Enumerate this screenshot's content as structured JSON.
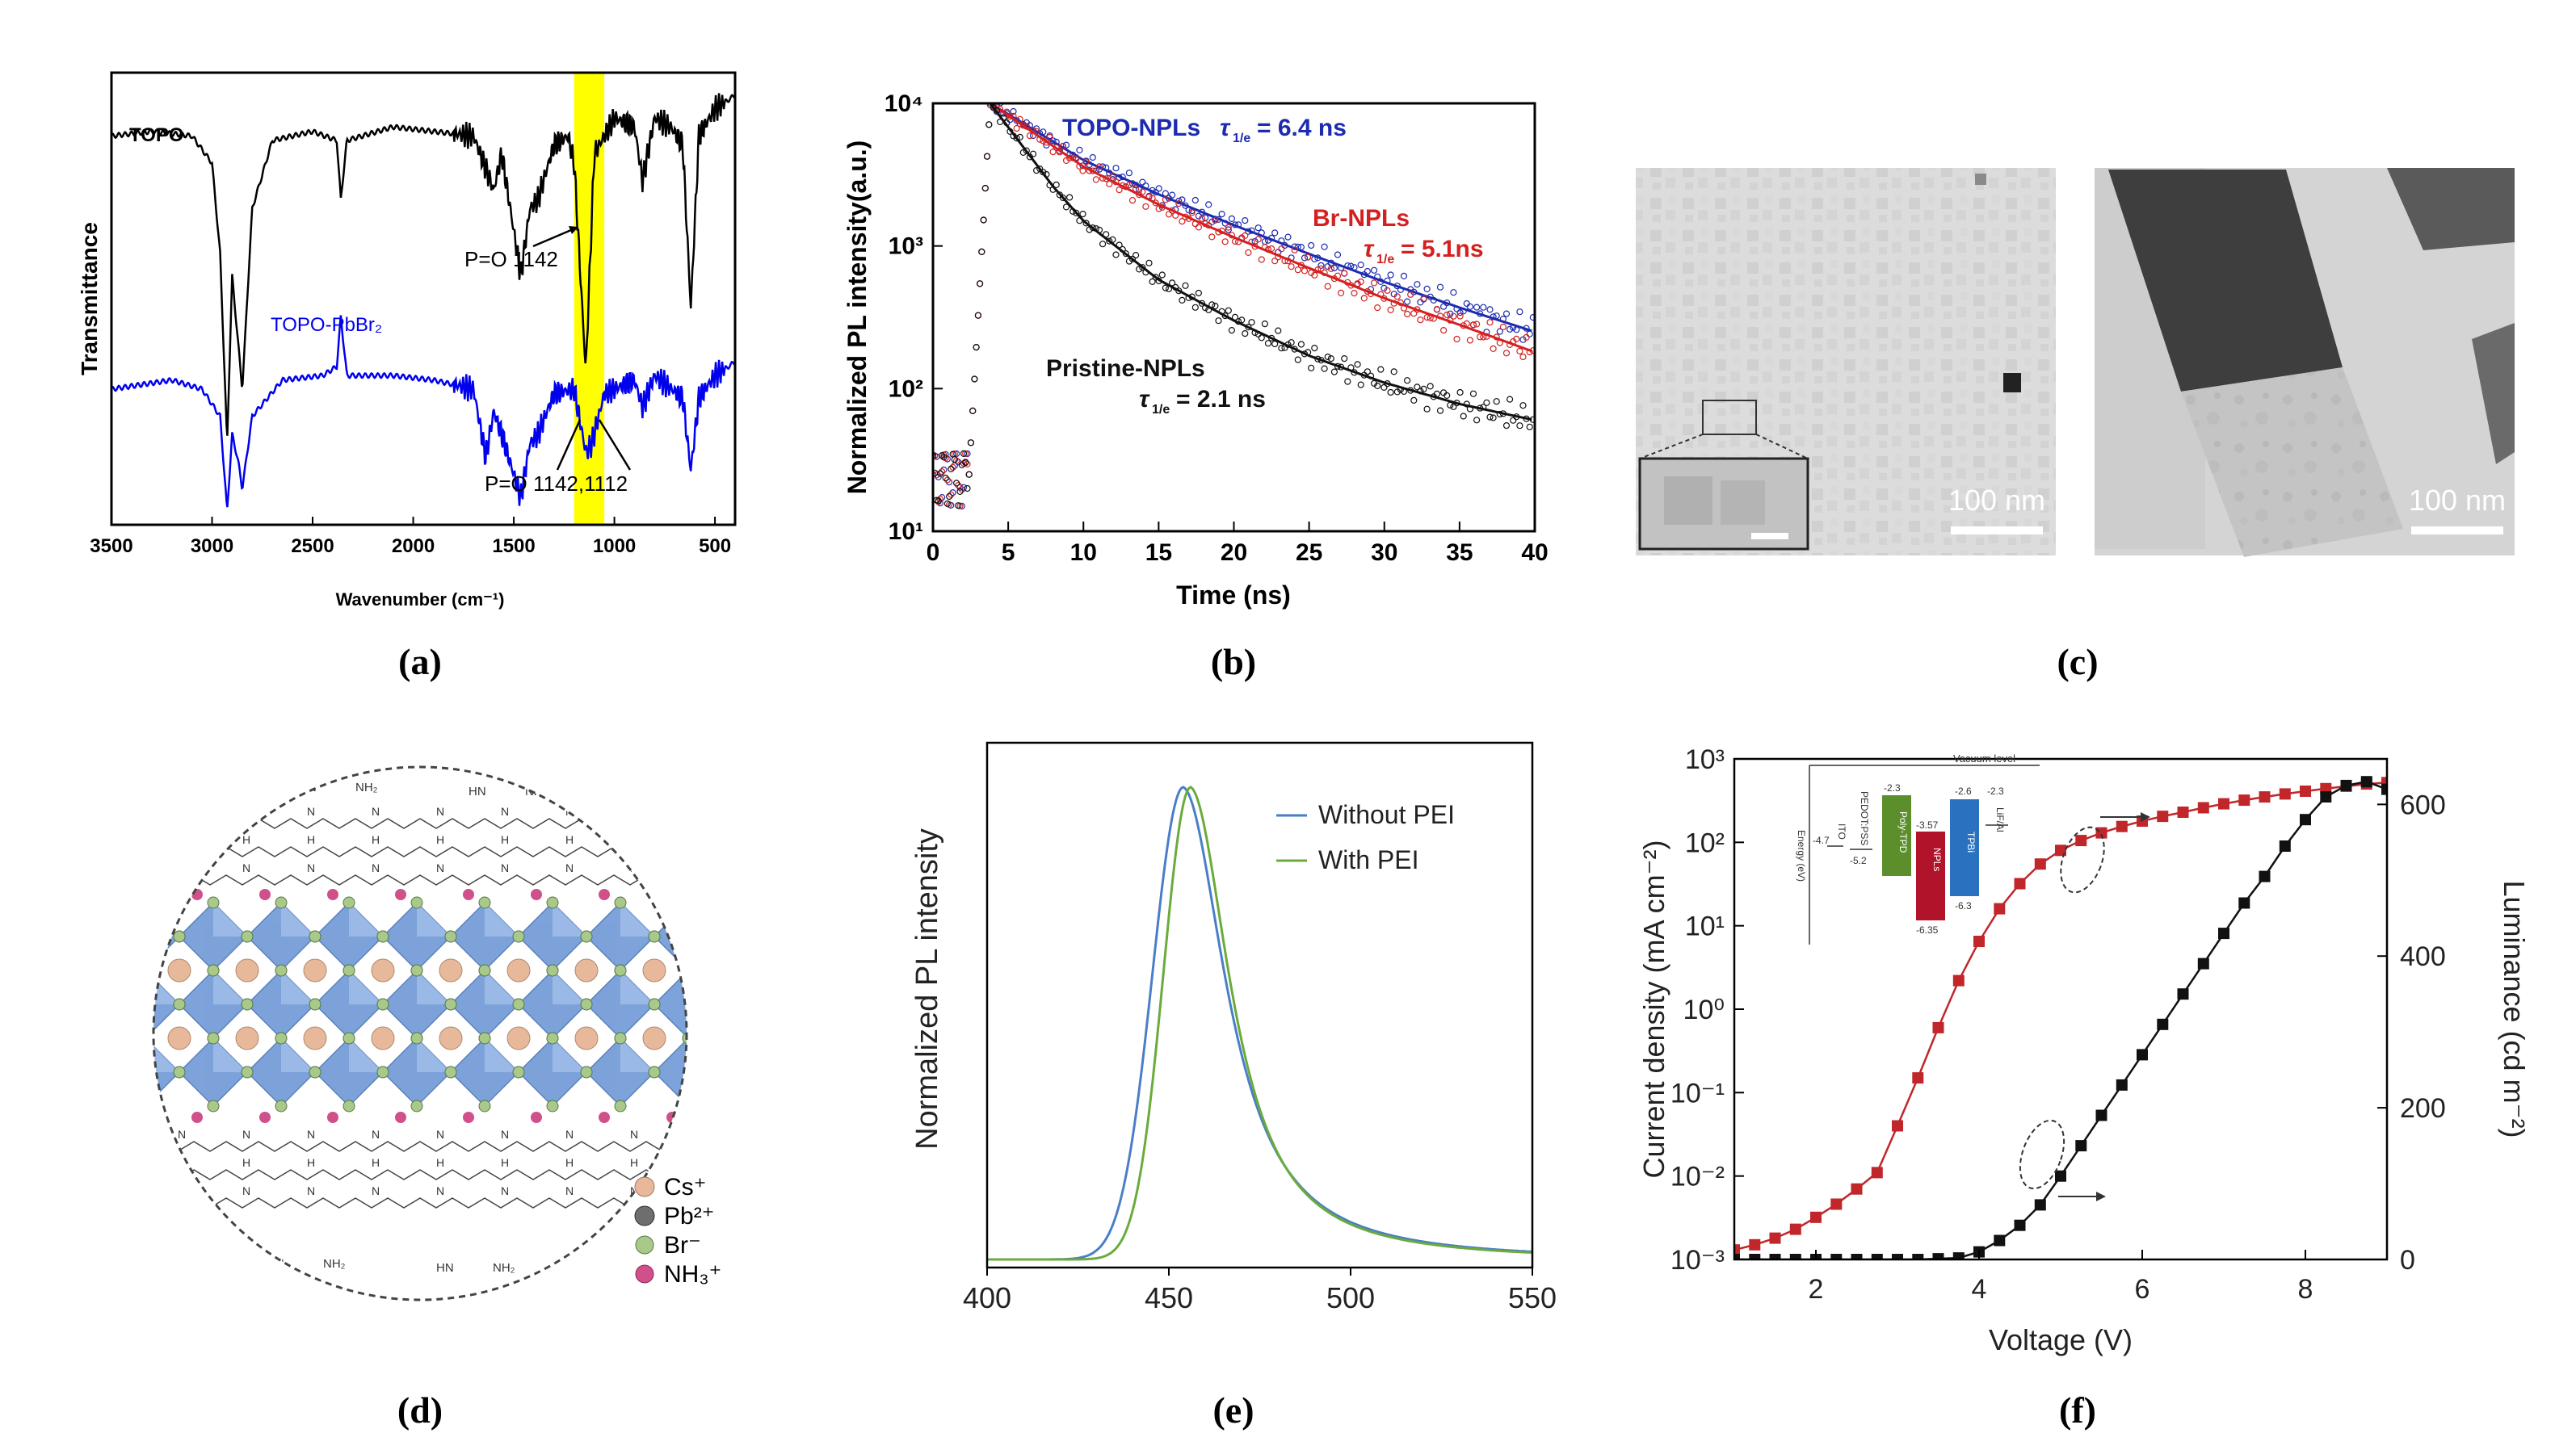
{
  "panel_labels": [
    "(a)",
    "(b)",
    "(c)",
    "(d)",
    "(e)",
    "(f)"
  ],
  "chart_data": [
    {
      "id": "a",
      "type": "line",
      "xlabel": "Wavenumber (cm⁻¹)",
      "ylabel": "Transmittance",
      "xlim": [
        3500,
        400
      ],
      "x_reversed": true,
      "xticks": [
        3500,
        3000,
        2500,
        2000,
        1500,
        1000,
        500
      ],
      "highlight_band": [
        1200,
        1050
      ],
      "highlight_color": "#ffff00",
      "series": [
        {
          "name": "TOPO",
          "color": "#000000",
          "points": [
            [
              3500,
              0.86
            ],
            [
              3300,
              0.87
            ],
            [
              3100,
              0.86
            ],
            [
              3000,
              0.8
            ],
            [
              2960,
              0.6
            ],
            [
              2925,
              0.18
            ],
            [
              2900,
              0.55
            ],
            [
              2870,
              0.4
            ],
            [
              2850,
              0.3
            ],
            [
              2800,
              0.7
            ],
            [
              2700,
              0.85
            ],
            [
              2500,
              0.87
            ],
            [
              2380,
              0.85
            ],
            [
              2360,
              0.72
            ],
            [
              2330,
              0.85
            ],
            [
              2100,
              0.88
            ],
            [
              1900,
              0.87
            ],
            [
              1700,
              0.86
            ],
            [
              1600,
              0.74
            ],
            [
              1560,
              0.82
            ],
            [
              1465,
              0.55
            ],
            [
              1420,
              0.7
            ],
            [
              1380,
              0.72
            ],
            [
              1300,
              0.84
            ],
            [
              1230,
              0.86
            ],
            [
              1200,
              0.8
            ],
            [
              1142,
              0.34
            ],
            [
              1100,
              0.82
            ],
            [
              1000,
              0.9
            ],
            [
              900,
              0.88
            ],
            [
              860,
              0.76
            ],
            [
              800,
              0.9
            ],
            [
              720,
              0.88
            ],
            [
              660,
              0.84
            ],
            [
              620,
              0.48
            ],
            [
              580,
              0.86
            ],
            [
              500,
              0.92
            ],
            [
              400,
              0.95
            ]
          ]
        },
        {
          "name": "TOPO-PbBr₂",
          "color": "#0000ee",
          "points": [
            [
              3500,
              0.3
            ],
            [
              3200,
              0.32
            ],
            [
              3050,
              0.3
            ],
            [
              2960,
              0.24
            ],
            [
              2925,
              0.03
            ],
            [
              2900,
              0.2
            ],
            [
              2870,
              0.14
            ],
            [
              2850,
              0.08
            ],
            [
              2800,
              0.24
            ],
            [
              2650,
              0.32
            ],
            [
              2450,
              0.33
            ],
            [
              2380,
              0.35
            ],
            [
              2360,
              0.46
            ],
            [
              2330,
              0.33
            ],
            [
              2100,
              0.33
            ],
            [
              1900,
              0.32
            ],
            [
              1700,
              0.3
            ],
            [
              1640,
              0.15
            ],
            [
              1600,
              0.25
            ],
            [
              1560,
              0.2
            ],
            [
              1465,
              0.06
            ],
            [
              1420,
              0.18
            ],
            [
              1380,
              0.2
            ],
            [
              1300,
              0.29
            ],
            [
              1200,
              0.3
            ],
            [
              1142,
              0.16
            ],
            [
              1112,
              0.18
            ],
            [
              1050,
              0.29
            ],
            [
              900,
              0.32
            ],
            [
              860,
              0.26
            ],
            [
              800,
              0.33
            ],
            [
              660,
              0.28
            ],
            [
              620,
              0.12
            ],
            [
              580,
              0.28
            ],
            [
              500,
              0.33
            ],
            [
              400,
              0.36
            ]
          ]
        }
      ],
      "annotations": [
        "P=O 1142",
        "P=O 1142,1112"
      ]
    },
    {
      "id": "b",
      "type": "scatter",
      "xlabel": "Time (ns)",
      "ylabel": "Normalized PL intensity(a.u.)",
      "xlim": [
        0,
        40
      ],
      "xticks": [
        0,
        5,
        10,
        15,
        20,
        25,
        30,
        35,
        40
      ],
      "ylim": [
        10,
        10000
      ],
      "yscale": "log",
      "yticks": [
        10,
        100,
        1000,
        10000
      ],
      "ytick_labels": [
        "10¹",
        "10²",
        "10³",
        "10⁴"
      ],
      "peak_time": 3.8,
      "series": [
        {
          "name": "TOPO-NPLs",
          "color": "#1c2bb0",
          "label": "TOPO-NPLs",
          "tau_label": "= 6.4 ns",
          "decay": [
            [
              3.8,
              10000
            ],
            [
              10,
              4000
            ],
            [
              15,
              2300
            ],
            [
              20,
              1400
            ],
            [
              25,
              880
            ],
            [
              30,
              560
            ],
            [
              35,
              370
            ],
            [
              40,
              250
            ]
          ]
        },
        {
          "name": "Br-NPLs",
          "color": "#d42020",
          "label": "Br-NPLs",
          "tau_label": "= 5.1ns",
          "decay": [
            [
              3.8,
              10000
            ],
            [
              10,
              3600
            ],
            [
              15,
              1950
            ],
            [
              20,
              1150
            ],
            [
              25,
              700
            ],
            [
              30,
              430
            ],
            [
              35,
              280
            ],
            [
              40,
              180
            ]
          ]
        },
        {
          "name": "Pristine-NPLs",
          "color": "#111111",
          "label": "Pristine-NPLs",
          "tau_label": "= 2.1 ns",
          "decay": [
            [
              3.8,
              10000
            ],
            [
              8,
              2600
            ],
            [
              10,
              1500
            ],
            [
              15,
              580
            ],
            [
              20,
              300
            ],
            [
              25,
              170
            ],
            [
              30,
              110
            ],
            [
              35,
              78
            ],
            [
              40,
              60
            ]
          ]
        }
      ],
      "tau_symbol": "τ",
      "tau_subscript": "1/e"
    },
    {
      "id": "e",
      "type": "line",
      "xlabel": "",
      "ylabel": "Normalized PL intensity",
      "xlim": [
        400,
        550
      ],
      "xticks": [
        400,
        450,
        500,
        550
      ],
      "series": [
        {
          "name": "Without PEI",
          "color": "#4a7ec8",
          "peak": 454,
          "sigma_left": 8.5,
          "sigma_right": 14
        },
        {
          "name": "With PEI",
          "color": "#6aab3c",
          "peak": 456,
          "sigma_left": 7.5,
          "sigma_right": 13
        }
      ]
    },
    {
      "id": "f",
      "type": "scatter",
      "xlabel": "Voltage (V)",
      "ylabel": "Current density (mA cm⁻²)",
      "y2label": "Luminance (cd m⁻²)",
      "xlim": [
        1,
        9
      ],
      "xticks": [
        2,
        4,
        6,
        8
      ],
      "ylim": [
        0.001,
        1000
      ],
      "yscale": "log",
      "yticks": [
        0.001,
        0.01,
        0.1,
        1,
        10,
        100,
        1000
      ],
      "ytick_labels": [
        "10⁻³",
        "10⁻²",
        "10⁻¹",
        "10⁰",
        "10¹",
        "10²",
        "10³"
      ],
      "y2lim": [
        0,
        660
      ],
      "y2ticks": [
        0,
        200,
        400,
        600
      ],
      "series": [
        {
          "name": "Current density",
          "color": "#c0262a",
          "axis": "left",
          "x": [
            1.0,
            1.25,
            1.5,
            1.75,
            2.0,
            2.25,
            2.5,
            2.75,
            3.0,
            3.25,
            3.5,
            3.75,
            4.0,
            4.25,
            4.5,
            4.75,
            5.0,
            5.25,
            5.5,
            5.75,
            6.0,
            6.25,
            6.5,
            6.75,
            7.0,
            7.25,
            7.5,
            7.75,
            8.0,
            8.25,
            8.5,
            8.75,
            9.0
          ],
          "y": [
            0.0013,
            0.0015,
            0.0018,
            0.0023,
            0.0032,
            0.0046,
            0.007,
            0.011,
            0.04,
            0.15,
            0.6,
            2.2,
            6.5,
            16,
            32,
            55,
            80,
            105,
            130,
            155,
            180,
            205,
            230,
            260,
            290,
            320,
            350,
            380,
            410,
            440,
            470,
            500,
            520
          ]
        },
        {
          "name": "Luminance",
          "color": "#111111",
          "axis": "right",
          "x": [
            1.0,
            1.25,
            1.5,
            1.75,
            2.0,
            2.25,
            2.5,
            2.75,
            3.0,
            3.25,
            3.5,
            3.75,
            4.0,
            4.25,
            4.5,
            4.75,
            5.0,
            5.25,
            5.5,
            5.75,
            6.0,
            6.25,
            6.5,
            6.75,
            7.0,
            7.25,
            7.5,
            7.75,
            8.0,
            8.25,
            8.5,
            8.75,
            9.0
          ],
          "y": [
            0,
            0,
            0,
            0,
            0,
            0,
            0,
            0,
            0,
            0,
            1,
            2,
            10,
            25,
            45,
            72,
            110,
            150,
            190,
            230,
            270,
            310,
            350,
            390,
            430,
            470,
            505,
            545,
            580,
            610,
            625,
            630,
            620
          ]
        }
      ],
      "inset_title": "Vacuum level",
      "inset_levels": [
        "-2.3",
        "-5.2",
        "-3.57",
        "-6.35",
        "-2.6",
        "-6.3",
        "-2.3",
        "-4.7"
      ],
      "inset_layers": [
        "ITO",
        "PEDOT:PSS",
        "Poly-TPD",
        "NPLs",
        "TPBi",
        "LiF/Al"
      ],
      "inset_ylabel": "Energy (eV)"
    }
  ],
  "images": {
    "c": {
      "scalebar_left": "100 nm",
      "scalebar_right": "100 nm"
    },
    "d": {
      "legend": [
        "Cs⁺",
        "Pb²⁺",
        "Br⁻",
        "NH₃⁺"
      ],
      "legend_colors": [
        "#e8b89a",
        "#6e6e6e",
        "#a8c98a",
        "#d0508a"
      ],
      "ligand_labels": [
        "HN",
        "NH₂",
        "HN",
        "NH₂",
        "N",
        "H"
      ]
    }
  }
}
